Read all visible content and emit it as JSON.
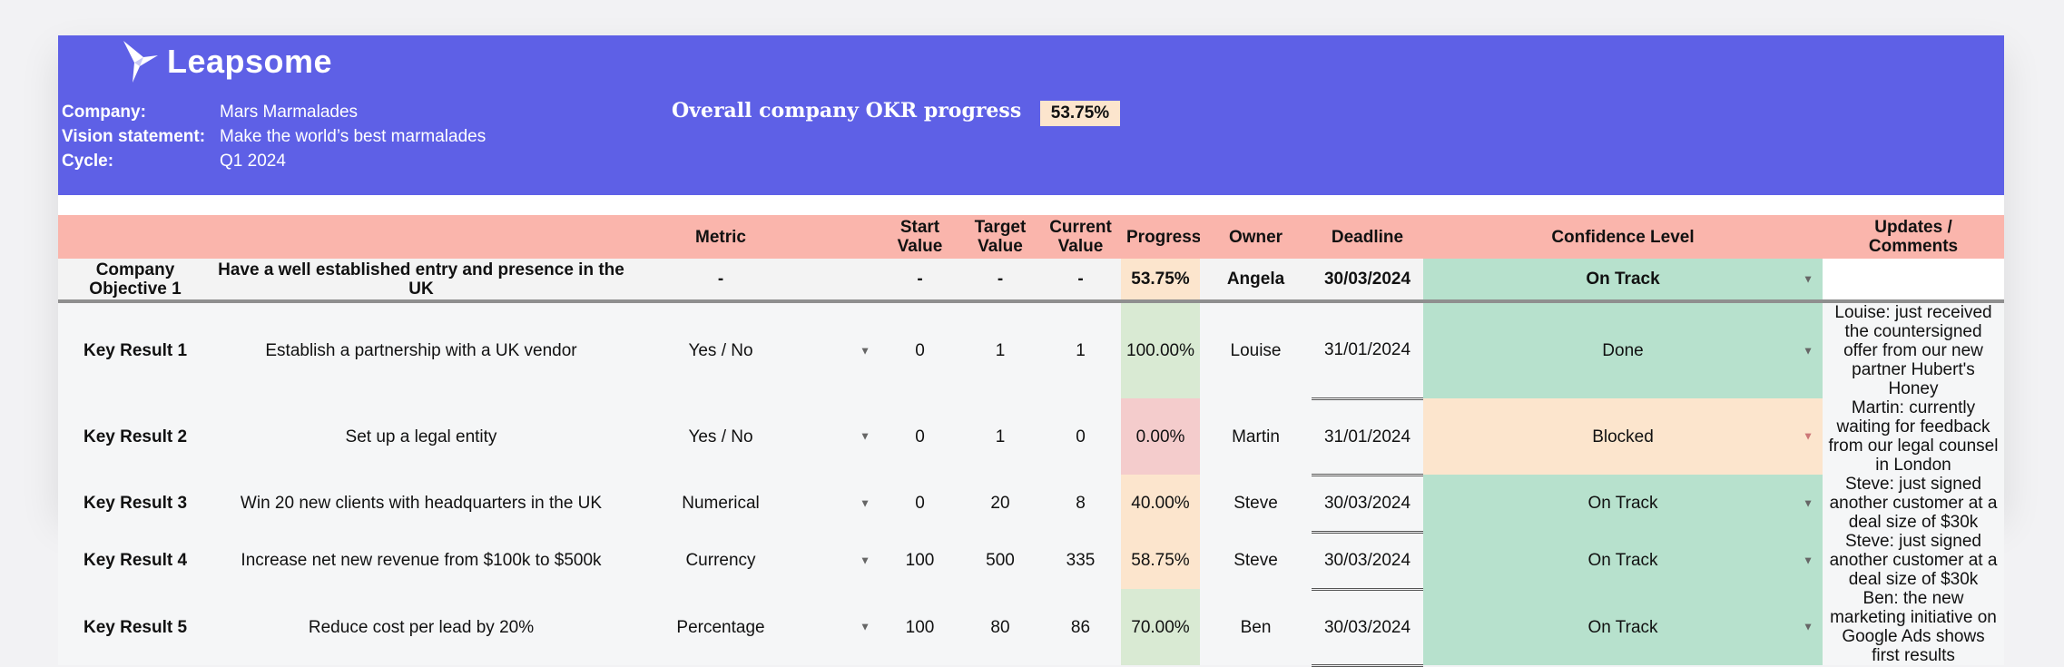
{
  "brand": {
    "name": "Leapsome"
  },
  "colors": {
    "banner": "#5e60e6",
    "header_row": "#fab5ac",
    "peach": "#fce5cd",
    "green": "#d9ead3",
    "red": "#f4cccc",
    "confidence_green": "#b7e1cd",
    "confidence_orange": "#fce5cd"
  },
  "company_info": {
    "company_label": "Company:",
    "company_value": "Mars Marmalades",
    "vision_label": "Vision statement:",
    "vision_value": "Make the world’s best marmalades",
    "cycle_label": "Cycle:",
    "cycle_value": "Q1 2024"
  },
  "overall": {
    "title": "Overall company OKR progress",
    "value": "53.75%"
  },
  "headers": {
    "metric": "Metric",
    "start_value": "Start Value",
    "target_value": "Target Value",
    "current_value": "Current Value",
    "progress": "Progress",
    "owner": "Owner",
    "deadline": "Deadline",
    "confidence": "Confidence Level",
    "updates": "Updates / Comments"
  },
  "objective": {
    "label": "Company Objective 1",
    "title": "Have a well established entry and presence in the UK",
    "metric": "-",
    "start": "-",
    "target": "-",
    "current": "-",
    "progress": "53.75%",
    "owner": "Angela",
    "deadline": "30/03/2024",
    "confidence": "On Track",
    "comment": ""
  },
  "key_results": [
    {
      "label": "Key Result 1",
      "title": "Establish a partnership with a UK vendor",
      "metric": "Yes / No",
      "start": "0",
      "target": "1",
      "current": "1",
      "progress": "100.00%",
      "owner": "Louise",
      "deadline": "31/01/2024",
      "confidence": "Done",
      "comment": "Louise: just received the countersigned offer from our new partner Hubert's Honey"
    },
    {
      "label": "Key Result 2",
      "title": "Set up a legal entity",
      "metric": "Yes / No",
      "start": "0",
      "target": "1",
      "current": "0",
      "progress": "0.00%",
      "owner": "Martin",
      "deadline": "31/01/2024",
      "confidence": "Blocked",
      "comment": "Martin: currently waiting for feedback from our legal counsel in London"
    },
    {
      "label": "Key Result 3",
      "title": "Win 20 new clients with headquarters in the UK",
      "metric": "Numerical",
      "start": "0",
      "target": "20",
      "current": "8",
      "progress": "40.00%",
      "owner": "Steve",
      "deadline": "30/03/2024",
      "confidence": "On Track",
      "comment": "Steve: just signed another customer at a deal size of $30k"
    },
    {
      "label": "Key Result 4",
      "title": "Increase net new revenue from $100k to $500k",
      "metric": "Currency",
      "start": "100",
      "target": "500",
      "current": "335",
      "progress": "58.75%",
      "owner": "Steve",
      "deadline": "30/03/2024",
      "confidence": "On Track",
      "comment": "Steve: just signed another customer at a deal size of $30k"
    },
    {
      "label": "Key Result 5",
      "title": "Reduce cost per lead by 20%",
      "metric": "Percentage",
      "start": "100",
      "target": "80",
      "current": "86",
      "progress": "70.00%",
      "owner": "Ben",
      "deadline": "30/03/2024",
      "confidence": "On Track",
      "comment": "Ben: the new marketing initiative on Google Ads shows first results"
    }
  ]
}
